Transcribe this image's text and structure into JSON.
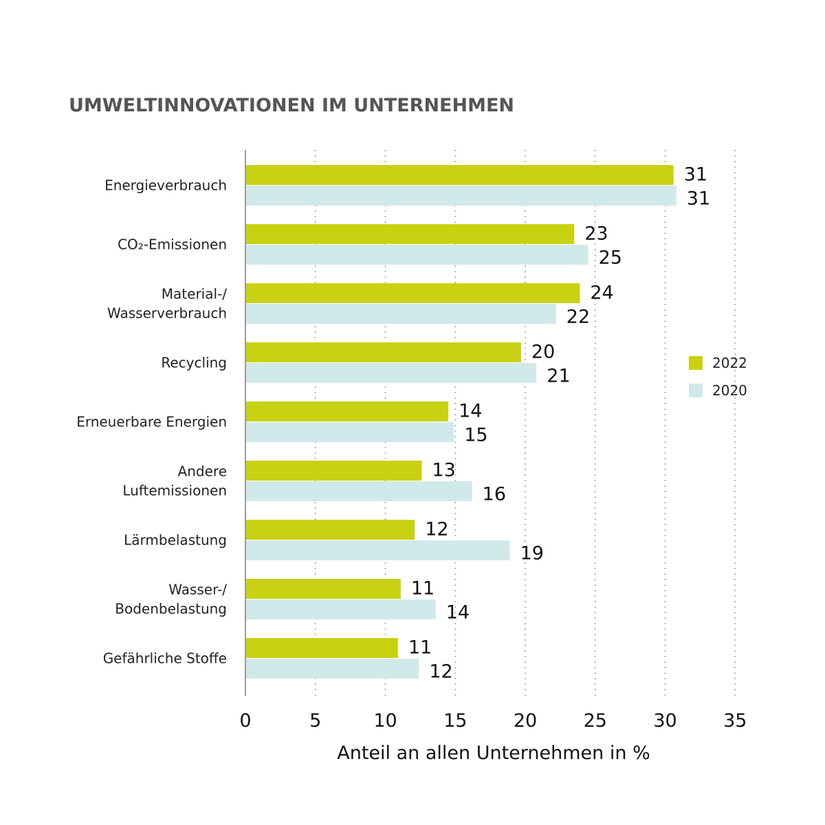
{
  "chart_data": {
    "type": "bar",
    "orientation": "horizontal",
    "title": "UMWELTINNOVATIONEN IM UNTERNEHMEN",
    "xlabel": "Anteil an allen Unternehmen in %",
    "ylabel": "",
    "xlim": [
      0,
      35
    ],
    "xticks": [
      0,
      5,
      10,
      15,
      20,
      25,
      30,
      35
    ],
    "grid": "vertical-dotted",
    "legend_position": "right",
    "categories": [
      [
        "Energieverbrauch"
      ],
      [
        "CO₂-Emissionen"
      ],
      [
        "Material-/",
        "Wasserverbrauch"
      ],
      [
        "Recycling"
      ],
      [
        "Erneuerbare Energien"
      ],
      [
        "Andere",
        "Luftemissionen"
      ],
      [
        "Lärmbelastung"
      ],
      [
        "Wasser-/",
        "Bodenbelastung"
      ],
      [
        "Gefährliche Stoffe"
      ]
    ],
    "series": [
      {
        "name": "2022",
        "color": "#c8d210",
        "values": [
          30.6,
          23.5,
          23.9,
          19.7,
          14.5,
          12.6,
          12.1,
          11.1,
          10.9
        ],
        "labels": [
          "31",
          "23",
          "24",
          "20",
          "14",
          "13",
          "12",
          "11",
          "11"
        ]
      },
      {
        "name": "2020",
        "color": "#d2e9e9",
        "values": [
          30.8,
          24.5,
          22.2,
          20.8,
          14.9,
          16.2,
          18.9,
          13.6,
          12.4
        ],
        "labels": [
          "31",
          "25",
          "22",
          "21",
          "15",
          "16",
          "19",
          "14",
          "12"
        ]
      }
    ]
  }
}
